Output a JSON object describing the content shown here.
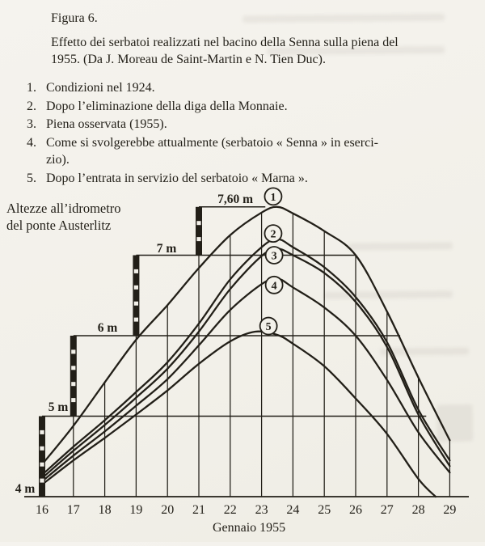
{
  "colors": {
    "ink": "#221f18",
    "paper": "#f3f1ea"
  },
  "figure": {
    "label": "Figura 6.",
    "caption_lines": [
      "Effetto dei serbatoi realizzati nel bacino della Senna sulla piena del",
      "1955. (Da J. Moreau de Saint-Martin e N. Tien Duc)."
    ]
  },
  "legend_list": [
    {
      "num": "1.",
      "lines": [
        "Condizioni nel 1924."
      ]
    },
    {
      "num": "2.",
      "lines": [
        "Dopo l’eliminazione della diga della Monnaie."
      ]
    },
    {
      "num": "3.",
      "lines": [
        "Piena osservata (1955)."
      ]
    },
    {
      "num": "4.",
      "lines": [
        "Come si svolgerebbe attualmente (serbatoio « Senna » in eserci-",
        "zio)."
      ]
    },
    {
      "num": "5.",
      "lines": [
        "Dopo l’entrata in servizio del serbatoio « Marna »."
      ]
    }
  ],
  "chart_data": {
    "type": "line",
    "title": "Effetto dei serbatoi realizzati nel bacino della Senna sulla piena del 1955",
    "y_axis_label_lines": [
      "Altezze all’idrometro",
      "del ponte Austerlitz"
    ],
    "x_axis_title": "Gennaio 1955",
    "x_range": [
      16,
      29
    ],
    "y_range_m": [
      4,
      7.6
    ],
    "x_tick_labels": [
      "16",
      "17",
      "18",
      "19",
      "20",
      "21",
      "22",
      "23",
      "24",
      "25",
      "26",
      "27",
      "28",
      "29"
    ],
    "y_levels": [
      {
        "m": 4,
        "label": "4 m"
      },
      {
        "m": 5,
        "label": "5 m",
        "from_day": 16,
        "to_day": 28.25
      },
      {
        "m": 6,
        "label": "6 m",
        "from_day": 17,
        "to_day": 27.42
      },
      {
        "m": 7,
        "label": "7 m",
        "from_day": 19,
        "to_day": 26.0
      },
      {
        "m": 7.6,
        "label": "7,60 m",
        "from_day": 21,
        "to_day": 23.12
      }
    ],
    "axis_step_bars": [
      {
        "day": 16,
        "from_m": 4,
        "to_m": 5
      },
      {
        "day": 17,
        "from_m": 5,
        "to_m": 6
      },
      {
        "day": 19,
        "from_m": 6,
        "to_m": 7
      },
      {
        "day": 21,
        "from_m": 7,
        "to_m": 7.6
      }
    ],
    "gridlines": [
      {
        "day": 17,
        "top": 5
      },
      {
        "day": 18,
        "top": "curve"
      },
      {
        "day": 19,
        "top": 6
      },
      {
        "day": 20,
        "top": "curve"
      },
      {
        "day": 21,
        "top": 7
      },
      {
        "day": 22,
        "top": "curve"
      },
      {
        "day": 23,
        "top": "curve"
      },
      {
        "day": 24,
        "top": "curve"
      },
      {
        "day": 25,
        "top": "curve"
      },
      {
        "day": 26,
        "top": "curve"
      },
      {
        "day": 27,
        "top": "curve"
      },
      {
        "day": 28,
        "top": "curve"
      },
      {
        "day": 29,
        "top": "curve"
      }
    ],
    "series": [
      {
        "id": "1",
        "name": "Condizioni nel 1924",
        "points": [
          [
            16,
            4.4
          ],
          [
            17,
            4.88
          ],
          [
            18,
            5.42
          ],
          [
            19,
            5.95
          ],
          [
            20,
            6.38
          ],
          [
            21,
            6.84
          ],
          [
            22,
            7.25
          ],
          [
            23,
            7.53
          ],
          [
            23.5,
            7.6
          ],
          [
            24,
            7.52
          ],
          [
            25,
            7.3
          ],
          [
            26,
            7.0
          ],
          [
            27,
            6.3
          ],
          [
            28,
            5.48
          ],
          [
            29,
            4.7
          ]
        ]
      },
      {
        "id": "2",
        "name": "Dopo l’eliminazione della diga della Monnaie",
        "points": [
          [
            16,
            4.27
          ],
          [
            17,
            4.62
          ],
          [
            18,
            4.95
          ],
          [
            19,
            5.3
          ],
          [
            20,
            5.67
          ],
          [
            21,
            6.15
          ],
          [
            22,
            6.7
          ],
          [
            23,
            7.1
          ],
          [
            23.5,
            7.2
          ],
          [
            24,
            7.1
          ],
          [
            25,
            6.85
          ],
          [
            26,
            6.48
          ],
          [
            27,
            5.92
          ],
          [
            28,
            5.08
          ],
          [
            29,
            4.45
          ]
        ]
      },
      {
        "id": "3",
        "name": "Piena osservata (1955)",
        "points": [
          [
            16,
            4.23
          ],
          [
            17,
            4.57
          ],
          [
            18,
            4.89
          ],
          [
            19,
            5.23
          ],
          [
            20,
            5.59
          ],
          [
            21,
            6.05
          ],
          [
            22,
            6.58
          ],
          [
            23,
            6.99
          ],
          [
            23.5,
            7.08
          ],
          [
            24,
            7.0
          ],
          [
            25,
            6.78
          ],
          [
            26,
            6.42
          ],
          [
            27,
            5.86
          ],
          [
            28,
            5.02
          ],
          [
            29,
            4.38
          ]
        ]
      },
      {
        "id": "4",
        "name": "Come si svolgerebbe attualmente (serbatoio « Senna » in esercizio)",
        "points": [
          [
            16,
            4.19
          ],
          [
            17,
            4.51
          ],
          [
            18,
            4.81
          ],
          [
            19,
            5.13
          ],
          [
            20,
            5.46
          ],
          [
            21,
            5.88
          ],
          [
            22,
            6.32
          ],
          [
            23,
            6.64
          ],
          [
            23.5,
            6.71
          ],
          [
            24,
            6.6
          ],
          [
            25,
            6.35
          ],
          [
            26,
            6.0
          ],
          [
            27,
            5.45
          ],
          [
            28,
            4.8
          ],
          [
            29,
            4.3
          ]
        ]
      },
      {
        "id": "5",
        "name": "Dopo l’entrata in servizio del serbatoio « Marna »",
        "points": [
          [
            16,
            4.15
          ],
          [
            17,
            4.45
          ],
          [
            18,
            4.73
          ],
          [
            19,
            5.02
          ],
          [
            20,
            5.32
          ],
          [
            21,
            5.65
          ],
          [
            22,
            5.93
          ],
          [
            22.8,
            6.05
          ],
          [
            23.5,
            6.01
          ],
          [
            24,
            5.9
          ],
          [
            25,
            5.62
          ],
          [
            26,
            5.22
          ],
          [
            27,
            4.78
          ],
          [
            28,
            4.22
          ],
          [
            28.55,
            4.0
          ]
        ]
      }
    ],
    "curve_markers": [
      {
        "label": "1",
        "day": 23.37,
        "m": 7.73
      },
      {
        "label": "2",
        "day": 23.37,
        "m": 7.27
      },
      {
        "label": "3",
        "day": 23.4,
        "m": 7.0
      },
      {
        "label": "4",
        "day": 23.4,
        "m": 6.63
      },
      {
        "label": "5",
        "day": 23.22,
        "m": 6.12
      }
    ],
    "legend_position": "above-chart-numbered-list",
    "grid": "partial-vertical-day-lines"
  }
}
